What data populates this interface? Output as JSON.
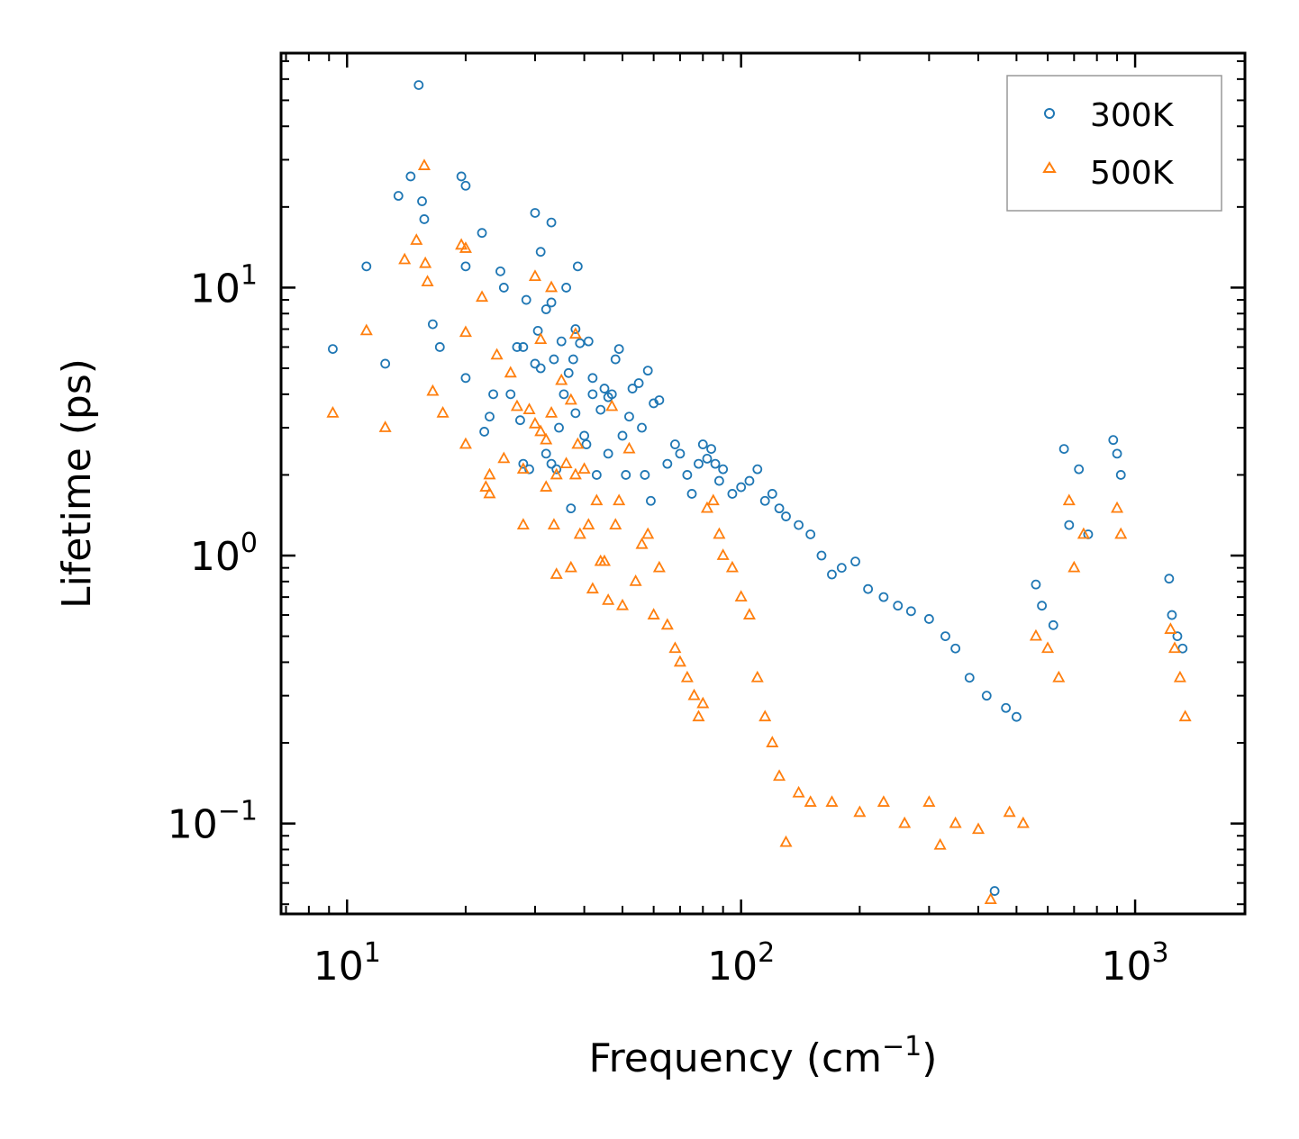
{
  "chart_data": {
    "type": "scatter",
    "xlabel": "Frequency (cm",
    "xlabel_sup": "−1",
    "xlabel_end": ")",
    "ylabel": "Lifetime (ps)",
    "xscale": "log",
    "yscale": "log",
    "xlim": [
      6.8,
      1900
    ],
    "ylim": [
      0.046,
      75
    ],
    "xticks": [
      {
        "base": "10",
        "exp": "1",
        "value": 10
      },
      {
        "base": "10",
        "exp": "2",
        "value": 100
      },
      {
        "base": "10",
        "exp": "3",
        "value": 1000
      }
    ],
    "yticks": [
      {
        "base": "10",
        "exp": "−1",
        "value": 0.1
      },
      {
        "base": "10",
        "exp": "0",
        "value": 1
      },
      {
        "base": "10",
        "exp": "1",
        "value": 10
      }
    ],
    "legend_position": "top-right",
    "series": [
      {
        "name": "300K",
        "marker": "circle",
        "color": "#1f77b4",
        "points": [
          [
            9.2,
            5.9
          ],
          [
            11.2,
            12
          ],
          [
            12.5,
            5.2
          ],
          [
            13.5,
            22
          ],
          [
            14.5,
            26
          ],
          [
            15.2,
            57
          ],
          [
            15.5,
            21
          ],
          [
            15.7,
            18
          ],
          [
            16.5,
            7.3
          ],
          [
            17.2,
            6
          ],
          [
            19.5,
            26
          ],
          [
            20,
            24
          ],
          [
            20,
            12
          ],
          [
            20,
            4.6
          ],
          [
            22,
            16
          ],
          [
            22.3,
            2.9
          ],
          [
            23,
            3.3
          ],
          [
            23.5,
            4
          ],
          [
            24.5,
            11.5
          ],
          [
            25,
            10
          ],
          [
            26,
            4
          ],
          [
            27,
            6
          ],
          [
            27.5,
            3.2
          ],
          [
            28,
            6
          ],
          [
            28,
            2.2
          ],
          [
            28.5,
            9
          ],
          [
            29,
            2.1
          ],
          [
            30,
            19
          ],
          [
            30,
            5.2
          ],
          [
            30.5,
            6.9
          ],
          [
            31,
            5
          ],
          [
            31,
            13.6
          ],
          [
            32,
            8.3
          ],
          [
            32,
            2.4
          ],
          [
            33,
            17.5
          ],
          [
            33,
            8.8
          ],
          [
            33,
            2.2
          ],
          [
            33.5,
            5.4
          ],
          [
            34,
            2.1
          ],
          [
            34.5,
            3
          ],
          [
            35,
            6.3
          ],
          [
            35.5,
            4
          ],
          [
            36,
            10
          ],
          [
            36.5,
            4.8
          ],
          [
            37,
            1.5
          ],
          [
            37.5,
            5.4
          ],
          [
            38,
            3.4
          ],
          [
            38,
            7
          ],
          [
            38.5,
            12
          ],
          [
            39,
            6.2
          ],
          [
            40,
            2.8
          ],
          [
            40.5,
            2.6
          ],
          [
            41,
            6.3
          ],
          [
            42,
            4
          ],
          [
            42,
            4.6
          ],
          [
            43,
            2
          ],
          [
            44,
            3.5
          ],
          [
            45,
            4.2
          ],
          [
            46,
            2.4
          ],
          [
            46,
            3.9
          ],
          [
            47,
            4
          ],
          [
            48,
            5.4
          ],
          [
            49,
            5.9
          ],
          [
            50,
            2.8
          ],
          [
            51,
            2
          ],
          [
            52,
            3.3
          ],
          [
            53,
            4.2
          ],
          [
            55,
            4.4
          ],
          [
            56,
            3
          ],
          [
            57,
            2
          ],
          [
            58,
            4.9
          ],
          [
            59,
            1.6
          ],
          [
            60,
            3.7
          ],
          [
            62,
            3.8
          ],
          [
            65,
            2.2
          ],
          [
            68,
            2.6
          ],
          [
            70,
            2.4
          ],
          [
            73,
            2
          ],
          [
            75,
            1.7
          ],
          [
            78,
            2.2
          ],
          [
            80,
            2.6
          ],
          [
            82,
            2.3
          ],
          [
            84,
            2.5
          ],
          [
            86,
            2.2
          ],
          [
            88,
            1.9
          ],
          [
            90,
            2.1
          ],
          [
            95,
            1.7
          ],
          [
            100,
            1.8
          ],
          [
            105,
            1.9
          ],
          [
            110,
            2.1
          ],
          [
            115,
            1.6
          ],
          [
            120,
            1.7
          ],
          [
            125,
            1.5
          ],
          [
            130,
            1.4
          ],
          [
            140,
            1.3
          ],
          [
            150,
            1.2
          ],
          [
            160,
            1.0
          ],
          [
            170,
            0.85
          ],
          [
            180,
            0.9
          ],
          [
            195,
            0.95
          ],
          [
            210,
            0.75
          ],
          [
            230,
            0.7
          ],
          [
            250,
            0.65
          ],
          [
            270,
            0.62
          ],
          [
            300,
            0.58
          ],
          [
            330,
            0.5
          ],
          [
            350,
            0.45
          ],
          [
            380,
            0.35
          ],
          [
            420,
            0.3
          ],
          [
            440,
            0.056
          ],
          [
            470,
            0.27
          ],
          [
            500,
            0.25
          ],
          [
            560,
            0.78
          ],
          [
            580,
            0.65
          ],
          [
            620,
            0.55
          ],
          [
            660,
            2.5
          ],
          [
            680,
            1.3
          ],
          [
            720,
            2.1
          ],
          [
            760,
            1.2
          ],
          [
            880,
            2.7
          ],
          [
            900,
            2.4
          ],
          [
            920,
            2.0
          ],
          [
            1220,
            0.82
          ],
          [
            1240,
            0.6
          ],
          [
            1280,
            0.5
          ],
          [
            1320,
            0.45
          ]
        ]
      },
      {
        "name": "500K",
        "marker": "triangle",
        "color": "#ff7f0e",
        "points": [
          [
            9.2,
            3.4
          ],
          [
            11.2,
            6.9
          ],
          [
            12.5,
            3
          ],
          [
            14,
            12.7
          ],
          [
            15,
            15
          ],
          [
            15.7,
            28.5
          ],
          [
            15.8,
            12.3
          ],
          [
            16,
            10.5
          ],
          [
            16.5,
            4.1
          ],
          [
            17.5,
            3.4
          ],
          [
            19.5,
            14.4
          ],
          [
            20,
            14
          ],
          [
            20,
            6.8
          ],
          [
            20,
            2.6
          ],
          [
            22,
            9.2
          ],
          [
            22.5,
            1.8
          ],
          [
            23,
            2
          ],
          [
            23,
            1.7
          ],
          [
            24,
            5.6
          ],
          [
            25,
            2.3
          ],
          [
            26,
            4.8
          ],
          [
            27,
            3.6
          ],
          [
            28,
            2.1
          ],
          [
            28,
            1.3
          ],
          [
            29,
            3.5
          ],
          [
            30,
            11
          ],
          [
            30,
            3.1
          ],
          [
            31,
            6.4
          ],
          [
            31,
            2.9
          ],
          [
            32,
            2.7
          ],
          [
            32,
            1.8
          ],
          [
            33,
            10
          ],
          [
            33,
            3.4
          ],
          [
            33.5,
            1.3
          ],
          [
            34,
            2
          ],
          [
            34,
            0.85
          ],
          [
            35,
            4.5
          ],
          [
            36,
            2.2
          ],
          [
            37,
            0.9
          ],
          [
            37,
            3.8
          ],
          [
            38,
            2
          ],
          [
            38,
            6.7
          ],
          [
            38.5,
            2.6
          ],
          [
            39,
            1.2
          ],
          [
            40,
            2.1
          ],
          [
            41,
            1.3
          ],
          [
            42,
            0.75
          ],
          [
            43,
            1.6
          ],
          [
            44,
            0.95
          ],
          [
            45,
            0.95
          ],
          [
            46,
            0.68
          ],
          [
            47,
            3.6
          ],
          [
            48,
            1.3
          ],
          [
            49,
            1.6
          ],
          [
            50,
            0.65
          ],
          [
            52,
            2.5
          ],
          [
            54,
            0.8
          ],
          [
            56,
            1.1
          ],
          [
            58,
            1.2
          ],
          [
            60,
            0.6
          ],
          [
            62,
            0.9
          ],
          [
            65,
            0.55
          ],
          [
            68,
            0.45
          ],
          [
            70,
            0.4
          ],
          [
            73,
            0.35
          ],
          [
            76,
            0.3
          ],
          [
            78,
            0.25
          ],
          [
            80,
            0.28
          ],
          [
            82,
            1.5
          ],
          [
            85,
            1.6
          ],
          [
            88,
            1.2
          ],
          [
            90,
            1.0
          ],
          [
            95,
            0.9
          ],
          [
            100,
            0.7
          ],
          [
            105,
            0.6
          ],
          [
            110,
            0.35
          ],
          [
            115,
            0.25
          ],
          [
            120,
            0.2
          ],
          [
            125,
            0.15
          ],
          [
            130,
            0.085
          ],
          [
            140,
            0.13
          ],
          [
            150,
            0.12
          ],
          [
            170,
            0.12
          ],
          [
            200,
            0.11
          ],
          [
            230,
            0.12
          ],
          [
            260,
            0.1
          ],
          [
            300,
            0.12
          ],
          [
            320,
            0.083
          ],
          [
            350,
            0.1
          ],
          [
            400,
            0.095
          ],
          [
            430,
            0.052
          ],
          [
            480,
            0.11
          ],
          [
            520,
            0.1
          ],
          [
            560,
            0.5
          ],
          [
            600,
            0.45
          ],
          [
            640,
            0.35
          ],
          [
            680,
            1.6
          ],
          [
            700,
            0.9
          ],
          [
            740,
            1.2
          ],
          [
            900,
            1.5
          ],
          [
            920,
            1.2
          ],
          [
            1230,
            0.53
          ],
          [
            1260,
            0.45
          ],
          [
            1300,
            0.35
          ],
          [
            1340,
            0.25
          ]
        ]
      }
    ]
  }
}
